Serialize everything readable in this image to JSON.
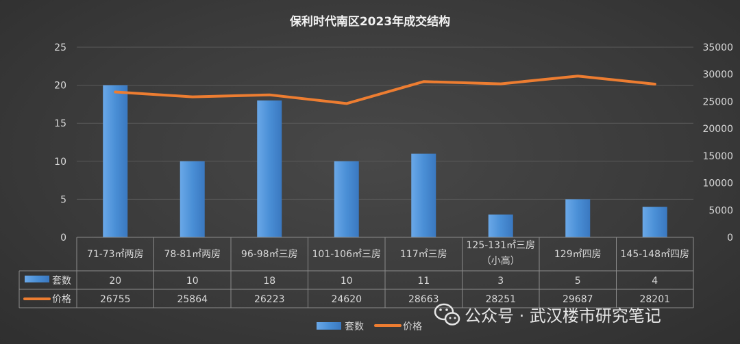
{
  "chart_data": {
    "type": "bar",
    "title": "保利时代南区2023年成交结构",
    "categories": [
      [
        "71-73㎡两房"
      ],
      [
        "78-81㎡两房"
      ],
      [
        "96-98㎡三房"
      ],
      [
        "101-106㎡三房"
      ],
      [
        "117㎡三房"
      ],
      [
        "125-131㎡三房",
        "（小高）"
      ],
      [
        "129㎡四房"
      ],
      [
        "145-148㎡四房"
      ]
    ],
    "series": [
      {
        "name": "套数",
        "type": "bar",
        "axis": "left",
        "color": "#4a8fd6",
        "values": [
          20,
          10,
          18,
          10,
          11,
          3,
          5,
          4
        ]
      },
      {
        "name": "价格",
        "type": "line",
        "axis": "right",
        "color": "#ed7d31",
        "values": [
          26755,
          25864,
          26223,
          24620,
          28663,
          28251,
          29687,
          28201
        ]
      }
    ],
    "y_left": {
      "min": 0,
      "max": 25,
      "ticks": [
        0,
        5,
        10,
        15,
        20,
        25
      ]
    },
    "y_right": {
      "min": 0,
      "max": 35000,
      "ticks": [
        0,
        5000,
        10000,
        15000,
        20000,
        25000,
        30000,
        35000
      ]
    },
    "grid": true,
    "data_table": true,
    "legend": "bottom"
  },
  "watermark": {
    "text": "公众号 · 武汉楼市研究笔记",
    "icon": "wechat-icon"
  }
}
